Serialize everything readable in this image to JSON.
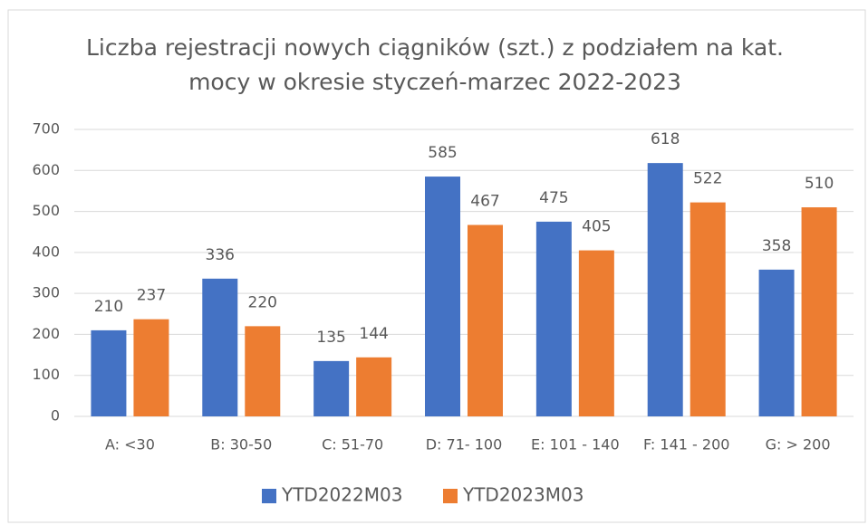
{
  "chart_data": {
    "type": "bar",
    "title": "Liczba rejestracji nowych ciągników (szt.) z podziałem na kat. mocy w okresie styczeń-marzec 2022-2023",
    "categories": [
      "A: <30",
      "B: 30-50",
      "C: 51-70",
      "D: 71- 100",
      "E: 101 - 140",
      "F: 141 - 200",
      "G: > 200"
    ],
    "series": [
      {
        "name": "YTD2022M03",
        "color": "#4472c4",
        "values": [
          210,
          336,
          135,
          585,
          475,
          618,
          358
        ]
      },
      {
        "name": "YTD2023M03",
        "color": "#ed7d31",
        "values": [
          237,
          220,
          144,
          467,
          405,
          522,
          510
        ]
      }
    ],
    "ylim": [
      0,
      700
    ],
    "yticks": [
      0,
      100,
      200,
      300,
      400,
      500,
      600,
      700
    ],
    "grid": true,
    "legend": "bottom"
  }
}
